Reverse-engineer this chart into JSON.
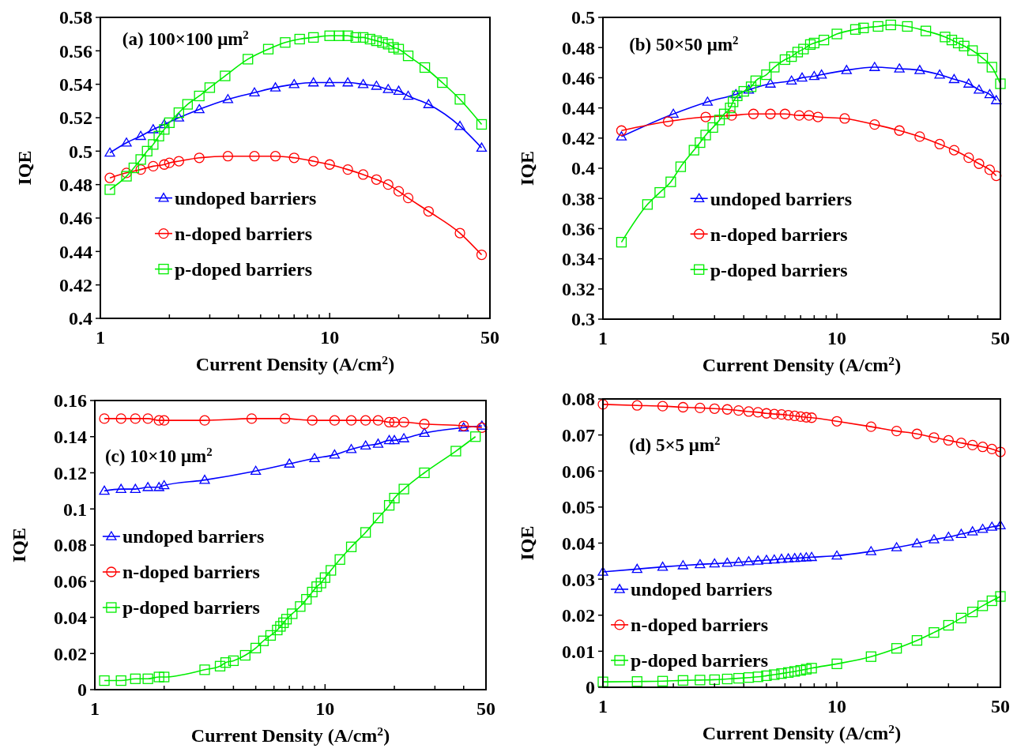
{
  "chart_data": [
    {
      "type": "line",
      "title": "(a) 100×100 μm$^{2}$",
      "xlabel": "Current Density (A/cm$^{2}$)",
      "ylabel": "IQE",
      "log": "x",
      "xlim": [
        1,
        50
      ],
      "xticks": [
        1,
        {
          "value": 2,
          "label": null
        },
        {
          "value": 3,
          "label": null
        },
        {
          "value": 4,
          "label": null
        },
        {
          "value": 5,
          "label": null
        },
        {
          "value": 6,
          "label": null
        },
        {
          "value": 7,
          "label": null
        },
        {
          "value": 8,
          "label": null
        },
        {
          "value": 9,
          "label": null
        },
        10,
        {
          "value": 20,
          "label": null
        },
        {
          "value": 30,
          "label": null
        },
        {
          "value": 40,
          "label": null
        },
        50
      ],
      "ylim": [
        0.4,
        0.58
      ],
      "yticks": [
        0.4,
        0.42,
        0.44,
        0.46,
        0.48,
        0.5,
        0.52,
        0.54,
        0.56,
        0.58
      ],
      "grid": false,
      "legend": "bottom left",
      "series": [
        {
          "name": "undoped barriers",
          "color": "#0000ff",
          "marker": "triangle",
          "x": [
            1.1,
            1.3,
            1.5,
            1.7,
            1.9,
            2.2,
            2.7,
            3.6,
            4.7,
            5.8,
            7,
            8.5,
            10,
            12,
            14,
            16,
            18,
            20,
            22,
            27,
            37,
            46
          ],
          "values": [
            0.499,
            0.505,
            0.509,
            0.513,
            0.516,
            0.52,
            0.525,
            0.531,
            0.535,
            0.538,
            0.54,
            0.541,
            0.541,
            0.541,
            0.54,
            0.539,
            0.537,
            0.536,
            0.533,
            0.528,
            0.515,
            0.502
          ]
        },
        {
          "name": "n-doped barriers",
          "color": "#ff0000",
          "marker": "circle",
          "x": [
            1.1,
            1.3,
            1.5,
            1.7,
            1.9,
            2.0,
            2.2,
            2.7,
            3.6,
            4.7,
            5.8,
            7,
            8.5,
            10,
            12,
            14,
            16,
            18,
            20,
            22,
            27,
            37,
            46
          ],
          "values": [
            0.484,
            0.487,
            0.489,
            0.491,
            0.492,
            0.493,
            0.494,
            0.496,
            0.497,
            0.497,
            0.497,
            0.496,
            0.494,
            0.492,
            0.489,
            0.486,
            0.483,
            0.48,
            0.476,
            0.472,
            0.464,
            0.451,
            0.438
          ]
        },
        {
          "name": "p-doped barriers",
          "color": "#00ee00",
          "marker": "square",
          "x": [
            1.1,
            1.3,
            1.4,
            1.5,
            1.6,
            1.7,
            1.8,
            1.9,
            2.0,
            2.2,
            2.4,
            2.7,
            3.0,
            3.5,
            4.4,
            5.4,
            6.4,
            7.4,
            8.5,
            10,
            11,
            12,
            13,
            14,
            15,
            16,
            17,
            18,
            19,
            20,
            22,
            26,
            31,
            37,
            46
          ],
          "values": [
            0.477,
            0.485,
            0.49,
            0.495,
            0.5,
            0.504,
            0.509,
            0.513,
            0.517,
            0.523,
            0.528,
            0.533,
            0.538,
            0.545,
            0.555,
            0.561,
            0.565,
            0.567,
            0.568,
            0.569,
            0.569,
            0.569,
            0.568,
            0.568,
            0.567,
            0.566,
            0.565,
            0.564,
            0.562,
            0.561,
            0.557,
            0.55,
            0.541,
            0.531,
            0.516
          ]
        }
      ]
    },
    {
      "type": "line",
      "title": "(b) 50×50 μm$^{2}$",
      "xlabel": "Current Density (A/cm$^{2}$)",
      "ylabel": "IQE",
      "log": "x",
      "xlim": [
        1,
        50
      ],
      "xticks": [
        1,
        {
          "value": 2,
          "label": null
        },
        {
          "value": 3,
          "label": null
        },
        {
          "value": 4,
          "label": null
        },
        {
          "value": 5,
          "label": null
        },
        {
          "value": 6,
          "label": null
        },
        {
          "value": 7,
          "label": null
        },
        {
          "value": 8,
          "label": null
        },
        {
          "value": 9,
          "label": null
        },
        10,
        {
          "value": 20,
          "label": null
        },
        {
          "value": 30,
          "label": null
        },
        {
          "value": 40,
          "label": null
        },
        50
      ],
      "ylim": [
        0.3,
        0.5
      ],
      "yticks": [
        0.3,
        0.32,
        0.34,
        0.36,
        0.38,
        0.4,
        0.42,
        0.44,
        0.46,
        0.48,
        0.5
      ],
      "grid": false,
      "legend": "bottom left",
      "series": [
        {
          "name": "undoped barriers",
          "color": "#0000ff",
          "marker": "triangle",
          "x": [
            1.2,
            2.0,
            2.8,
            3.7,
            4.2,
            5.2,
            6.4,
            7.1,
            8.0,
            8.6,
            11,
            14.5,
            18.5,
            22.6,
            27.5,
            31.7,
            36.6,
            40.5,
            45,
            48
          ],
          "values": [
            0.421,
            0.436,
            0.444,
            0.449,
            0.452,
            0.456,
            0.458,
            0.46,
            0.461,
            0.462,
            0.465,
            0.467,
            0.466,
            0.465,
            0.462,
            0.459,
            0.456,
            0.452,
            0.449,
            0.445
          ]
        },
        {
          "name": "n-doped barriers",
          "color": "#ff0000",
          "marker": "circle",
          "x": [
            1.2,
            1.9,
            2.75,
            3.55,
            4.4,
            5.2,
            6.0,
            6.9,
            7.6,
            8.3,
            10.8,
            14.5,
            18.5,
            22.6,
            27.5,
            31.7,
            36.6,
            40.5,
            45,
            48
          ],
          "values": [
            0.425,
            0.431,
            0.434,
            0.435,
            0.436,
            0.436,
            0.436,
            0.435,
            0.435,
            0.434,
            0.433,
            0.429,
            0.425,
            0.421,
            0.416,
            0.412,
            0.407,
            0.403,
            0.399,
            0.395
          ]
        },
        {
          "name": "p-doped barriers",
          "color": "#00ee00",
          "marker": "square",
          "x": [
            1.2,
            1.55,
            1.75,
            1.95,
            2.15,
            2.45,
            2.6,
            2.75,
            2.95,
            3.15,
            3.3,
            3.5,
            3.6,
            3.75,
            4.0,
            4.3,
            4.5,
            5.0,
            5.4,
            6.0,
            6.4,
            6.8,
            7.2,
            7.7,
            8.0,
            8.8,
            10,
            12,
            13,
            15,
            17,
            20,
            24,
            29,
            31,
            33,
            35,
            38,
            42,
            46,
            50
          ],
          "values": [
            0.351,
            0.376,
            0.384,
            0.391,
            0.401,
            0.412,
            0.417,
            0.422,
            0.427,
            0.432,
            0.436,
            0.44,
            0.444,
            0.448,
            0.451,
            0.454,
            0.458,
            0.462,
            0.467,
            0.472,
            0.474,
            0.477,
            0.479,
            0.482,
            0.483,
            0.485,
            0.489,
            0.492,
            0.493,
            0.494,
            0.495,
            0.494,
            0.491,
            0.487,
            0.485,
            0.483,
            0.481,
            0.478,
            0.473,
            0.467,
            0.456
          ]
        }
      ]
    },
    {
      "type": "line",
      "title": "(c) 10×10 μm$^{2}$",
      "xlabel": "Current Density (A/cm$^{2}$)",
      "ylabel": "IQE",
      "log": "x",
      "xlim": [
        1,
        50
      ],
      "xticks": [
        1,
        {
          "value": 2,
          "label": null
        },
        {
          "value": 3,
          "label": null
        },
        {
          "value": 4,
          "label": null
        },
        {
          "value": 5,
          "label": null
        },
        {
          "value": 6,
          "label": null
        },
        {
          "value": 7,
          "label": null
        },
        {
          "value": 8,
          "label": null
        },
        {
          "value": 9,
          "label": null
        },
        10,
        {
          "value": 20,
          "label": null
        },
        {
          "value": 30,
          "label": null
        },
        {
          "value": 40,
          "label": null
        },
        50
      ],
      "ylim": [
        0,
        0.16
      ],
      "yticks": [
        0,
        0.02,
        0.04,
        0.06,
        0.08,
        0.1,
        0.12,
        0.14,
        0.16
      ],
      "grid": false,
      "legend": "center left",
      "series": [
        {
          "name": "undoped barriers",
          "color": "#0000ff",
          "marker": "triangle",
          "x": [
            1.1,
            1.3,
            1.5,
            1.7,
            1.9,
            2.0,
            3,
            5,
            7,
            9,
            11,
            13,
            15,
            17,
            19,
            20,
            22,
            27,
            40,
            48
          ],
          "values": [
            0.11,
            0.111,
            0.111,
            0.112,
            0.112,
            0.113,
            0.116,
            0.121,
            0.125,
            0.128,
            0.13,
            0.133,
            0.135,
            0.136,
            0.138,
            0.138,
            0.139,
            0.142,
            0.145,
            0.146
          ]
        },
        {
          "name": "n-doped barriers",
          "color": "#ff0000",
          "marker": "circle",
          "x": [
            1.1,
            1.3,
            1.5,
            1.7,
            1.9,
            2.0,
            3,
            4.8,
            6.7,
            8.8,
            11,
            13,
            15,
            17,
            19,
            20,
            22,
            27,
            40,
            48
          ],
          "values": [
            0.15,
            0.15,
            0.15,
            0.15,
            0.149,
            0.149,
            0.149,
            0.15,
            0.15,
            0.149,
            0.149,
            0.149,
            0.149,
            0.149,
            0.148,
            0.148,
            0.148,
            0.147,
            0.146,
            0.145
          ]
        },
        {
          "name": "p-doped barriers",
          "color": "#00ee00",
          "marker": "square",
          "x": [
            1.1,
            1.3,
            1.5,
            1.7,
            1.9,
            2.0,
            3,
            3.5,
            3.7,
            4,
            4.5,
            5,
            5.4,
            5.8,
            6.2,
            6.4,
            6.6,
            6.8,
            7.2,
            7.8,
            8.3,
            8.8,
            9.2,
            9.6,
            10,
            10.6,
            11.6,
            13,
            15,
            17,
            19,
            20,
            22,
            27,
            37,
            45
          ],
          "values": [
            0.005,
            0.005,
            0.006,
            0.006,
            0.007,
            0.007,
            0.011,
            0.013,
            0.015,
            0.016,
            0.019,
            0.023,
            0.027,
            0.03,
            0.033,
            0.035,
            0.037,
            0.039,
            0.042,
            0.046,
            0.05,
            0.054,
            0.057,
            0.059,
            0.062,
            0.066,
            0.072,
            0.079,
            0.087,
            0.095,
            0.102,
            0.106,
            0.111,
            0.12,
            0.132,
            0.14
          ]
        }
      ]
    },
    {
      "type": "line",
      "title": "(d) 5×5 μm$^{2}$",
      "xlabel": "Current Density (A/cm$^{2}$)",
      "ylabel": "IQE",
      "log": "x",
      "xlim": [
        1,
        50
      ],
      "xticks": [
        1,
        {
          "value": 2,
          "label": null
        },
        {
          "value": 3,
          "label": null
        },
        {
          "value": 4,
          "label": null
        },
        {
          "value": 5,
          "label": null
        },
        {
          "value": 6,
          "label": null
        },
        {
          "value": 7,
          "label": null
        },
        {
          "value": 8,
          "label": null
        },
        {
          "value": 9,
          "label": null
        },
        10,
        {
          "value": 20,
          "label": null
        },
        {
          "value": 30,
          "label": null
        },
        {
          "value": 40,
          "label": null
        },
        50
      ],
      "ylim": [
        0,
        0.08
      ],
      "yticks": [
        0,
        0.01,
        0.02,
        0.03,
        0.04,
        0.05,
        0.06,
        0.07,
        0.08
      ],
      "grid": false,
      "legend": "bottom left",
      "x": [
        1,
        1.4,
        1.8,
        2.2,
        2.6,
        3,
        3.4,
        3.8,
        4.2,
        4.6,
        5,
        5.4,
        5.8,
        6.2,
        6.6,
        7,
        7.4,
        7.8,
        10,
        14,
        18,
        22,
        26,
        30,
        34,
        38,
        42,
        46,
        50
      ],
      "series": [
        {
          "name": "undoped barriers",
          "color": "#0000ff",
          "marker": "triangle",
          "values": [
            0.032,
            0.0328,
            0.0334,
            0.0338,
            0.0341,
            0.0343,
            0.0345,
            0.0347,
            0.0349,
            0.0351,
            0.0353,
            0.0354,
            0.0356,
            0.0357,
            0.0358,
            0.0359,
            0.036,
            0.0361,
            0.0365,
            0.0377,
            0.0388,
            0.0399,
            0.041,
            0.0417,
            0.0425,
            0.0432,
            0.0439,
            0.0445,
            0.0449
          ]
        },
        {
          "name": "n-doped barriers",
          "color": "#ff0000",
          "marker": "circle",
          "values": [
            0.0785,
            0.0782,
            0.078,
            0.0777,
            0.0775,
            0.0773,
            0.0771,
            0.0768,
            0.0765,
            0.0763,
            0.076,
            0.0758,
            0.0757,
            0.0755,
            0.0753,
            0.0751,
            0.0749,
            0.0748,
            0.0738,
            0.0723,
            0.0711,
            0.0703,
            0.0693,
            0.0685,
            0.0678,
            0.0672,
            0.0667,
            0.0661,
            0.0653
          ]
        },
        {
          "name": "p-doped barriers",
          "color": "#00ee00",
          "marker": "square",
          "values": [
            0.0015,
            0.0016,
            0.0017,
            0.0019,
            0.002,
            0.0021,
            0.0023,
            0.0025,
            0.0027,
            0.0029,
            0.0032,
            0.0035,
            0.0038,
            0.0041,
            0.0044,
            0.0047,
            0.005,
            0.0053,
            0.0065,
            0.0085,
            0.0108,
            0.013,
            0.0152,
            0.0172,
            0.0192,
            0.0209,
            0.0226,
            0.024,
            0.0252
          ]
        }
      ]
    }
  ]
}
